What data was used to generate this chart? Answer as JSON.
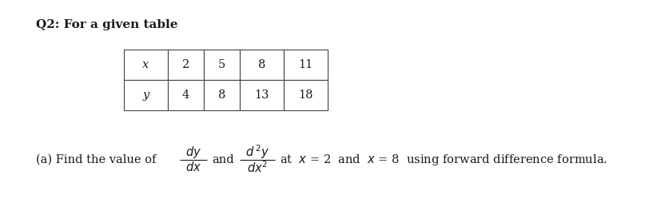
{
  "title": "Q2: For a given table",
  "text_color": "#1a1a1a",
  "background_color": "#ffffff",
  "table_x_vals": [
    "x",
    "2",
    "5",
    "8",
    "11"
  ],
  "table_y_vals": [
    "y",
    "4",
    "8",
    "13",
    "18"
  ],
  "fontsize_title": 11,
  "fontsize_body": 10.5,
  "fig_width": 8.28,
  "fig_height": 2.64,
  "dpi": 100
}
